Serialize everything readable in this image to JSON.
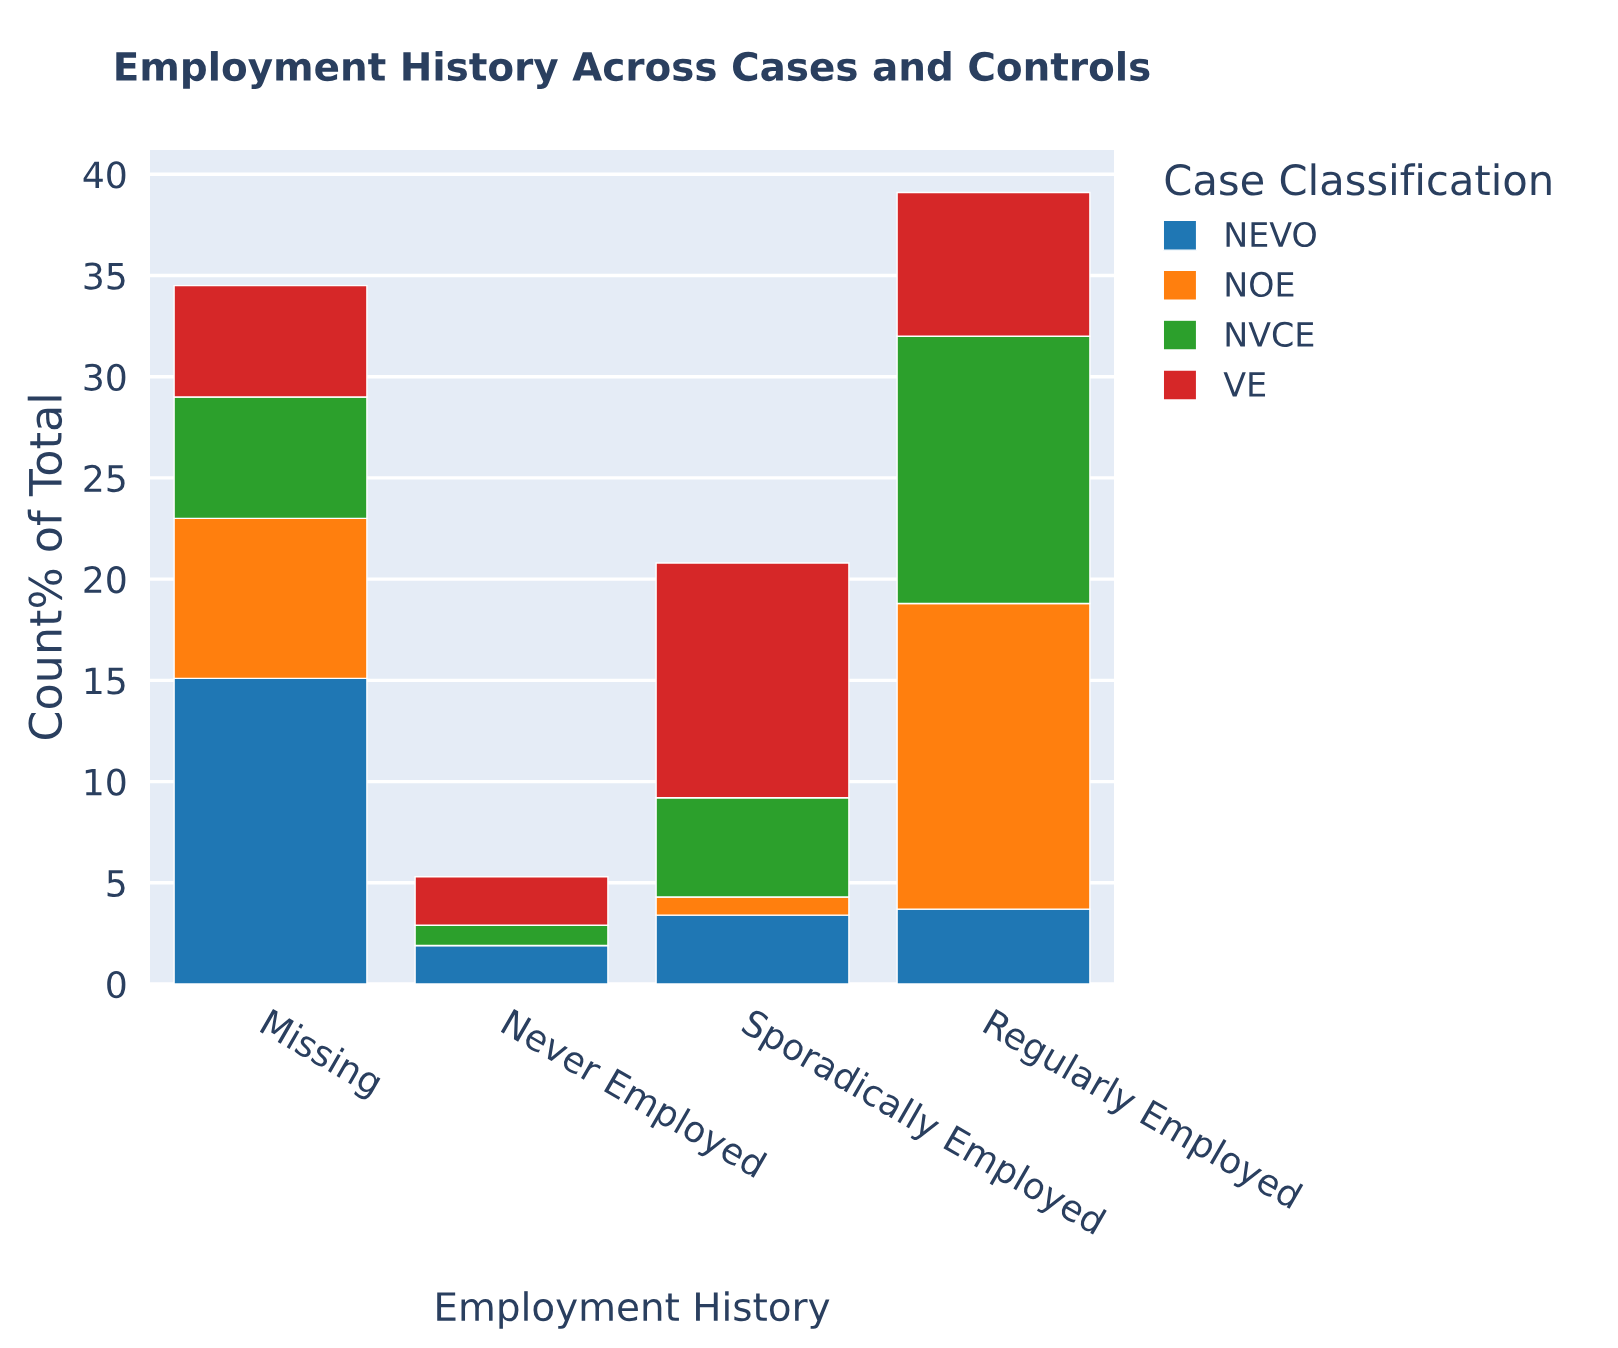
{
  "chart_data": {
    "type": "bar",
    "title": "Employment History Across Cases and Controls",
    "xlabel": "Employment History",
    "ylabel": "Count% of Total",
    "legend_title": "Case Classification",
    "categories": [
      "Missing",
      "Never Employed",
      "Sporadically Employed",
      "Regularly Employed"
    ],
    "stacked": true,
    "ylim": [
      0,
      41.2
    ],
    "yticks": [
      0,
      5,
      10,
      15,
      20,
      25,
      30,
      35,
      40
    ],
    "grid": "y",
    "legend": "top right",
    "series": [
      {
        "name": "NEVO",
        "color": "#1f77b4",
        "values": [
          15.1,
          1.9,
          3.4,
          3.7
        ]
      },
      {
        "name": "NOE",
        "color": "#ff7f0e",
        "values": [
          7.9,
          0,
          0.9,
          15.1
        ]
      },
      {
        "name": "NVCE",
        "color": "#2ca02c",
        "values": [
          6.0,
          1.0,
          4.9,
          13.2
        ]
      },
      {
        "name": "VE",
        "color": "#d62728",
        "values": [
          5.5,
          2.4,
          11.6,
          7.1
        ]
      }
    ]
  }
}
